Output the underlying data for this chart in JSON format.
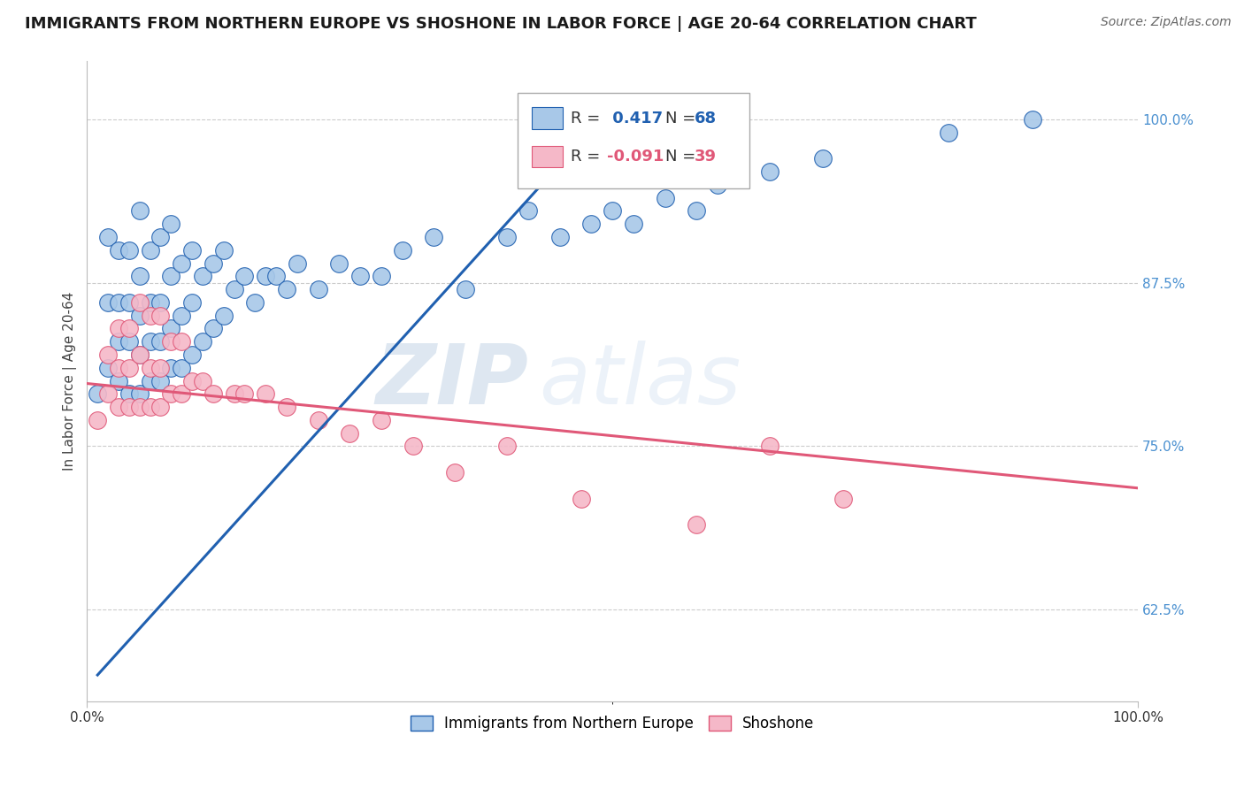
{
  "title": "IMMIGRANTS FROM NORTHERN EUROPE VS SHOSHONE IN LABOR FORCE | AGE 20-64 CORRELATION CHART",
  "source": "Source: ZipAtlas.com",
  "ylabel": "In Labor Force | Age 20-64",
  "x_tick_labels": [
    "0.0%",
    "100.0%"
  ],
  "y_tick_labels": [
    "62.5%",
    "75.0%",
    "87.5%",
    "100.0%"
  ],
  "xlim": [
    0.0,
    1.0
  ],
  "ylim": [
    0.555,
    1.045
  ],
  "blue_R": 0.417,
  "blue_N": 68,
  "pink_R": -0.091,
  "pink_N": 39,
  "blue_color": "#A8C8E8",
  "pink_color": "#F5B8C8",
  "blue_line_color": "#2060B0",
  "pink_line_color": "#E05878",
  "watermark_zip": "ZIP",
  "watermark_atlas": "atlas",
  "blue_scatter_x": [
    0.01,
    0.02,
    0.02,
    0.02,
    0.03,
    0.03,
    0.03,
    0.03,
    0.04,
    0.04,
    0.04,
    0.04,
    0.05,
    0.05,
    0.05,
    0.05,
    0.05,
    0.06,
    0.06,
    0.06,
    0.06,
    0.07,
    0.07,
    0.07,
    0.07,
    0.08,
    0.08,
    0.08,
    0.08,
    0.09,
    0.09,
    0.09,
    0.1,
    0.1,
    0.1,
    0.11,
    0.11,
    0.12,
    0.12,
    0.13,
    0.13,
    0.14,
    0.15,
    0.16,
    0.17,
    0.18,
    0.19,
    0.2,
    0.22,
    0.24,
    0.26,
    0.28,
    0.3,
    0.33,
    0.36,
    0.4,
    0.42,
    0.45,
    0.48,
    0.5,
    0.52,
    0.55,
    0.58,
    0.6,
    0.65,
    0.7,
    0.82,
    0.9
  ],
  "blue_scatter_y": [
    0.79,
    0.81,
    0.86,
    0.91,
    0.8,
    0.83,
    0.86,
    0.9,
    0.79,
    0.83,
    0.86,
    0.9,
    0.79,
    0.82,
    0.85,
    0.88,
    0.93,
    0.8,
    0.83,
    0.86,
    0.9,
    0.8,
    0.83,
    0.86,
    0.91,
    0.81,
    0.84,
    0.88,
    0.92,
    0.81,
    0.85,
    0.89,
    0.82,
    0.86,
    0.9,
    0.83,
    0.88,
    0.84,
    0.89,
    0.85,
    0.9,
    0.87,
    0.88,
    0.86,
    0.88,
    0.88,
    0.87,
    0.89,
    0.87,
    0.89,
    0.88,
    0.88,
    0.9,
    0.91,
    0.87,
    0.91,
    0.93,
    0.91,
    0.92,
    0.93,
    0.92,
    0.94,
    0.93,
    0.95,
    0.96,
    0.97,
    0.99,
    1.0
  ],
  "pink_scatter_x": [
    0.01,
    0.02,
    0.02,
    0.03,
    0.03,
    0.03,
    0.04,
    0.04,
    0.04,
    0.05,
    0.05,
    0.05,
    0.06,
    0.06,
    0.06,
    0.07,
    0.07,
    0.07,
    0.08,
    0.08,
    0.09,
    0.09,
    0.1,
    0.11,
    0.12,
    0.14,
    0.15,
    0.17,
    0.19,
    0.22,
    0.25,
    0.28,
    0.31,
    0.35,
    0.4,
    0.47,
    0.58,
    0.65,
    0.72
  ],
  "pink_scatter_y": [
    0.77,
    0.79,
    0.82,
    0.78,
    0.81,
    0.84,
    0.78,
    0.81,
    0.84,
    0.78,
    0.82,
    0.86,
    0.78,
    0.81,
    0.85,
    0.78,
    0.81,
    0.85,
    0.79,
    0.83,
    0.79,
    0.83,
    0.8,
    0.8,
    0.79,
    0.79,
    0.79,
    0.79,
    0.78,
    0.77,
    0.76,
    0.77,
    0.75,
    0.73,
    0.75,
    0.71,
    0.69,
    0.75,
    0.71
  ],
  "blue_line_x": [
    0.01,
    0.5
  ],
  "blue_line_y": [
    0.575,
    1.01
  ],
  "pink_line_x": [
    0.0,
    1.0
  ],
  "pink_line_y": [
    0.798,
    0.718
  ],
  "grid_color": "#CCCCCC",
  "title_fontsize": 13,
  "label_fontsize": 11,
  "tick_fontsize": 11,
  "source_fontsize": 10
}
